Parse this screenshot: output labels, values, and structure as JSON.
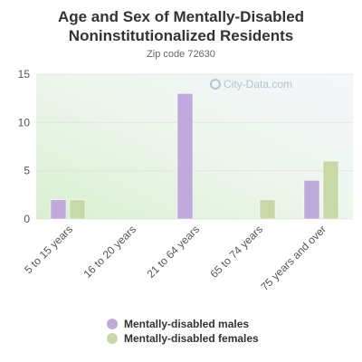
{
  "colors": {
    "males": "#c0a9db",
    "females": "#c8d9a8",
    "grid": "#dcdcdc",
    "axis_text": "#555555"
  },
  "watermark": {
    "text": "City-Data.com",
    "icon": "search-icon"
  },
  "chart_data": {
    "type": "bar",
    "title": "Age and Sex of Mentally-Disabled Noninstitutionalized Residents",
    "subtitle": "Zip code 72630",
    "categories": [
      "5 to 15 years",
      "16 to 20 years",
      "21 to 64 years",
      "65 to 74 years",
      "75 years and over"
    ],
    "series": [
      {
        "name": "Mentally-disabled males",
        "values": [
          2,
          0,
          13,
          0,
          4
        ]
      },
      {
        "name": "Mentally-disabled females",
        "values": [
          2,
          0,
          0,
          2,
          6
        ]
      }
    ],
    "ylim": [
      0,
      15
    ],
    "yticks": [
      0,
      5,
      10,
      15
    ],
    "grid": true,
    "legend_position": "bottom"
  }
}
